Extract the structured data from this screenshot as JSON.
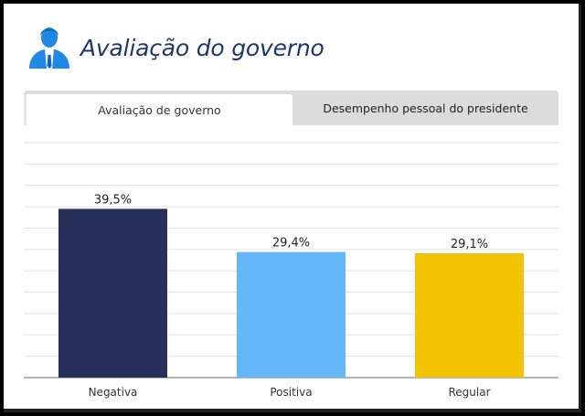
{
  "header": {
    "title": "Avaliação do governo",
    "icon": "businessman-icon",
    "accent": "#1d3570",
    "icon_color": "#1e88e5"
  },
  "tabs": [
    {
      "label": "Avaliação de governo",
      "active": true
    },
    {
      "label": "Desempenho pessoal do presidente",
      "active": false
    }
  ],
  "chart_data": {
    "type": "bar",
    "title": "",
    "xlabel": "",
    "ylabel": "",
    "categories": [
      "Negativa",
      "Positiva",
      "Regular"
    ],
    "values": [
      39.5,
      29.4,
      29.1
    ],
    "data_labels": [
      "39,5%",
      "29,4%",
      "29,1%"
    ],
    "colors": [
      "#26305a",
      "#64b7f8",
      "#f3c300"
    ],
    "ylim": [
      0,
      55
    ],
    "grid": true,
    "legend": "none"
  }
}
